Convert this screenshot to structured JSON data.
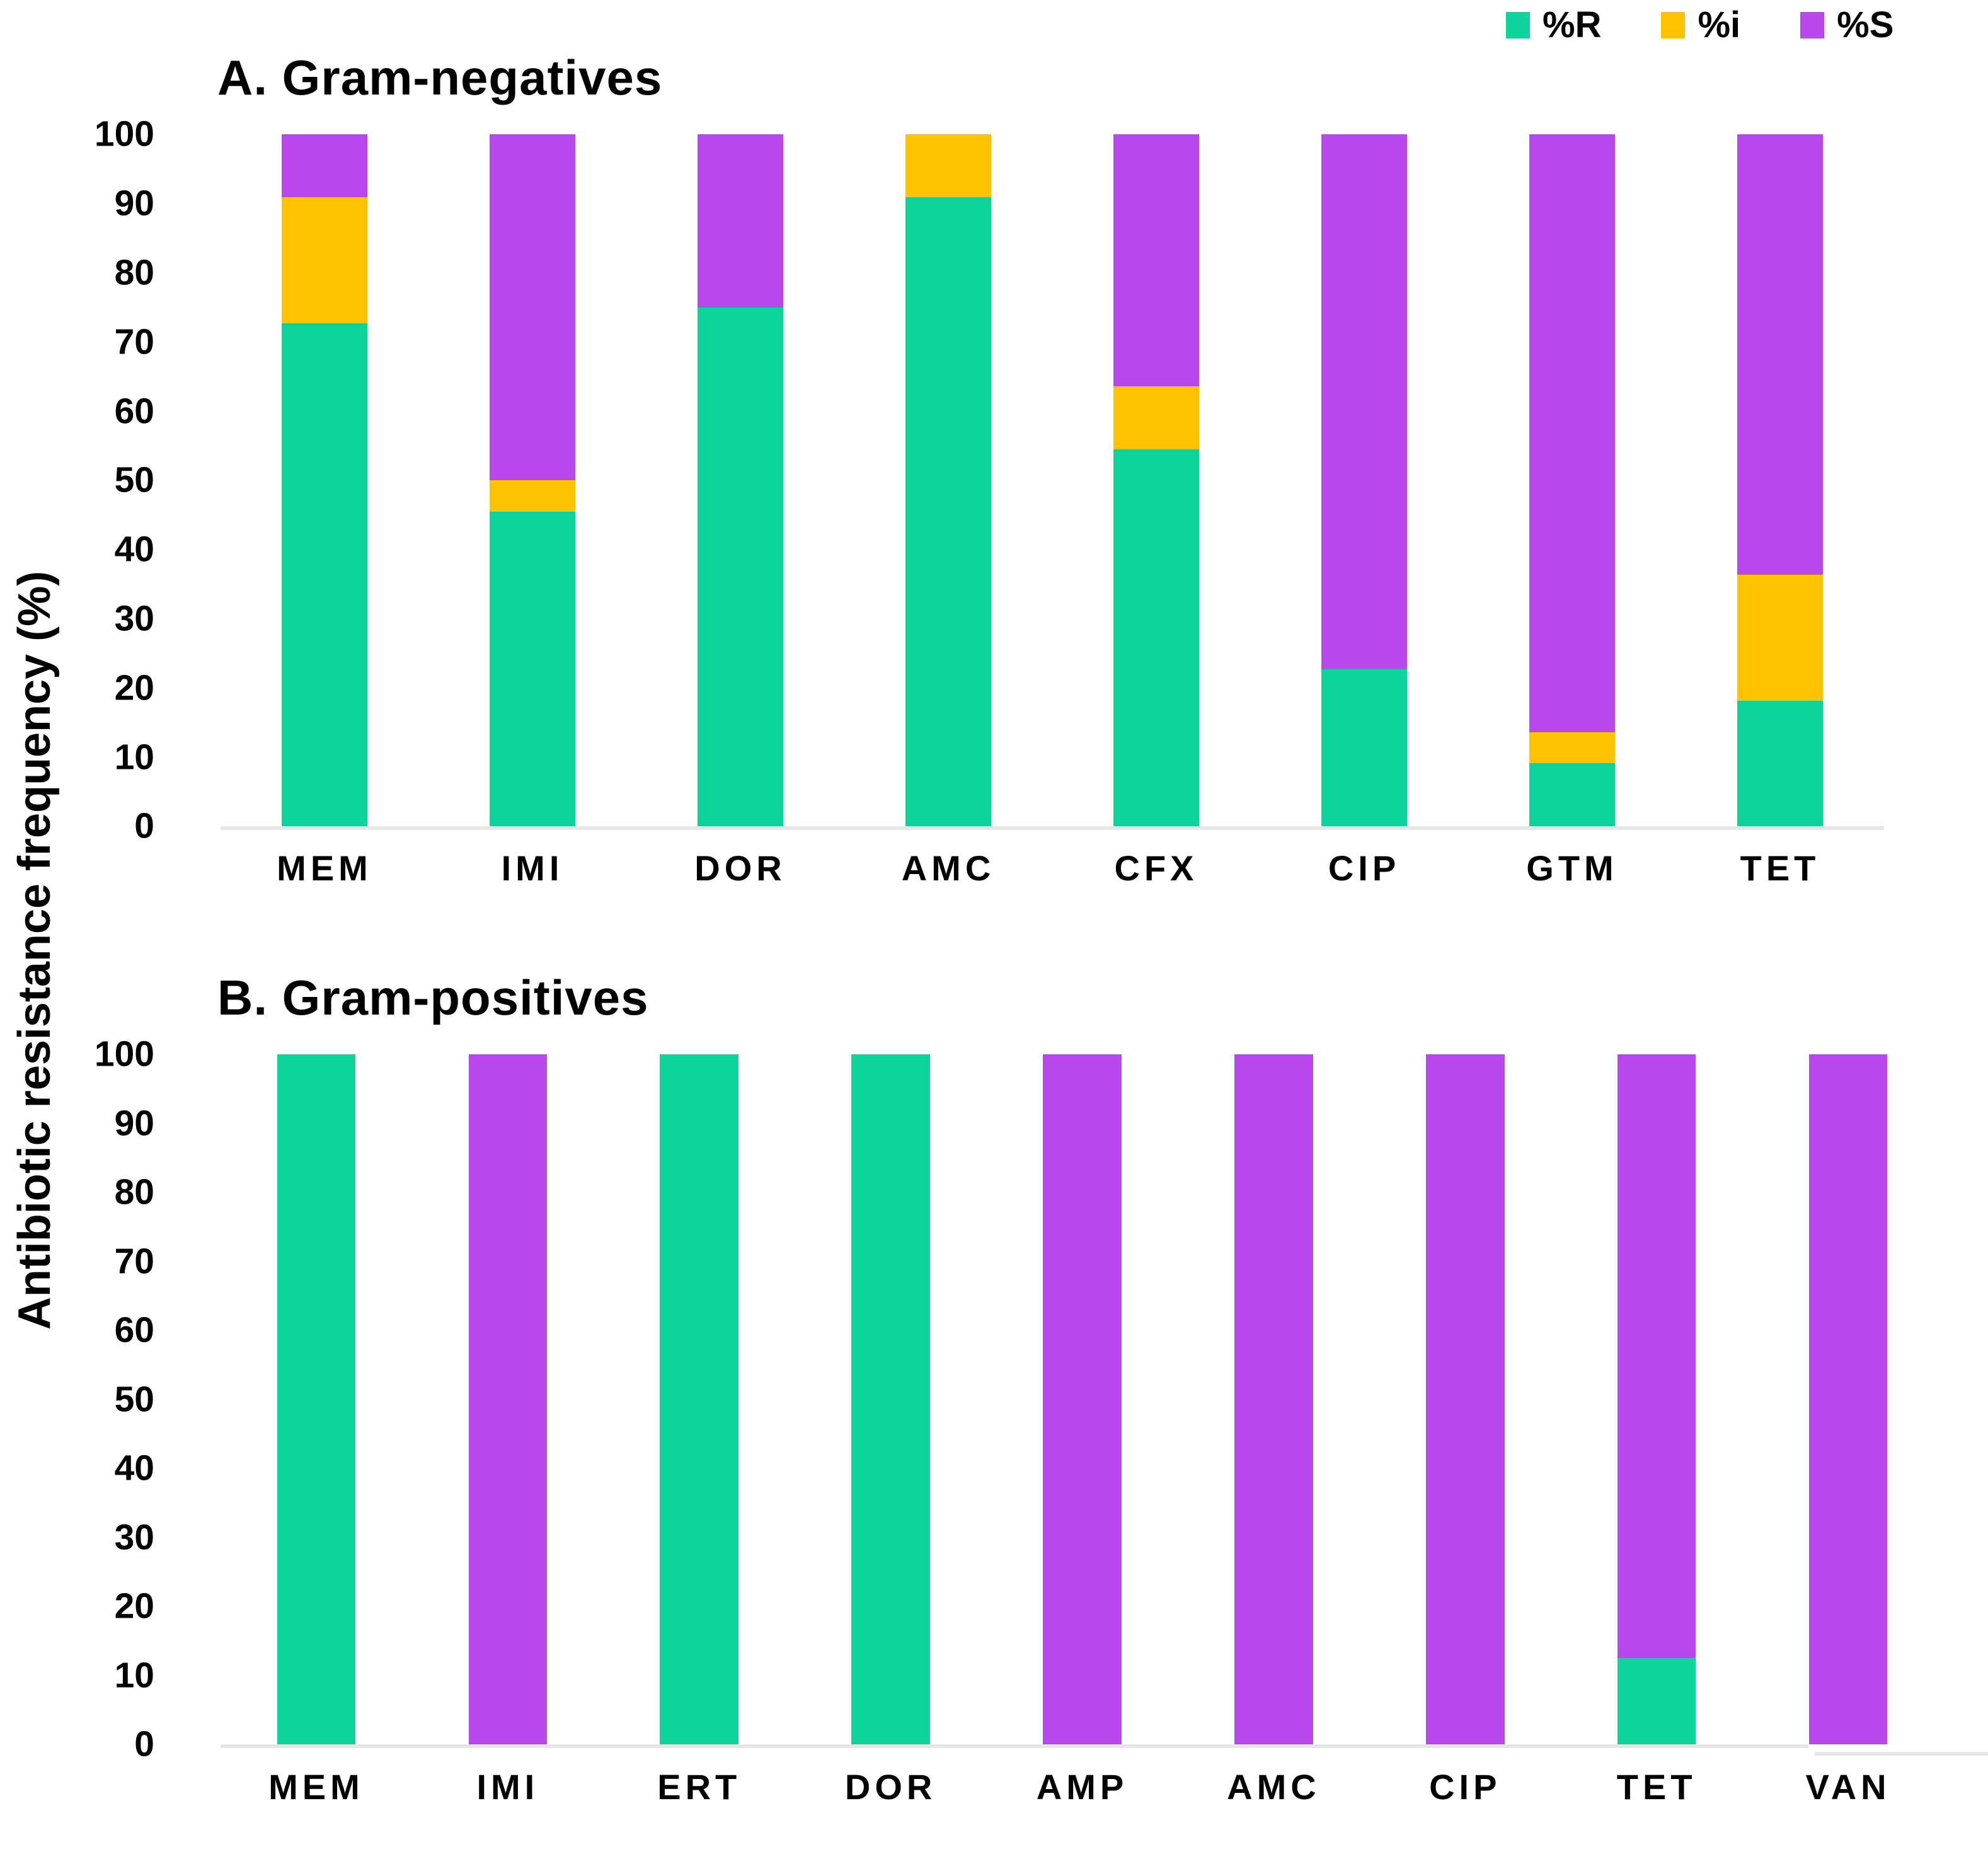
{
  "figure": {
    "y_axis_label": "Antibiotic resistance frequency (%)",
    "colors": {
      "resistant": "#0bd39a",
      "intermediate": "#ffc200",
      "susceptible": "#b847ee",
      "axis_line": "#e6e6e6",
      "text": "#000000",
      "background": "#ffffff"
    },
    "legend": [
      {
        "label": "%R",
        "color": "#0bd39a"
      },
      {
        "label": "%i",
        "color": "#ffc200"
      },
      {
        "label": "%S",
        "color": "#b847ee"
      }
    ]
  },
  "chart_data": [
    {
      "type": "bar",
      "stacked": true,
      "title": "A. Gram-negatives",
      "categories": [
        "MEM",
        "IMI",
        "DOR",
        "AMC",
        "CFX",
        "CIP",
        "GTM",
        "TET"
      ],
      "series": [
        {
          "name": "%R",
          "color": "#0bd39a",
          "values": [
            72.7,
            45.5,
            75.0,
            90.9,
            54.5,
            22.7,
            9.1,
            18.2
          ]
        },
        {
          "name": "%i",
          "color": "#ffc200",
          "values": [
            18.2,
            4.5,
            0,
            9.1,
            9.1,
            0,
            4.5,
            18.2
          ]
        },
        {
          "name": "%S",
          "color": "#b847ee",
          "values": [
            9.1,
            50.0,
            25.0,
            0,
            36.4,
            77.3,
            86.4,
            63.6
          ]
        }
      ],
      "xlabel": "",
      "ylabel": "Antibiotic resistance frequency (%)",
      "ylim": [
        0,
        100
      ],
      "yticks": [
        0,
        10,
        20,
        30,
        40,
        50,
        60,
        70,
        80,
        90,
        100
      ],
      "grid": false,
      "legend_position": "top-right"
    },
    {
      "type": "bar",
      "stacked": true,
      "title": "B. Gram-positives",
      "categories": [
        "MEM",
        "IMI",
        "ERT",
        "DOR",
        "AMP",
        "AMC",
        "CIP",
        "TET",
        "VAN"
      ],
      "series": [
        {
          "name": "%R",
          "color": "#0bd39a",
          "values": [
            100,
            0,
            100,
            100,
            0,
            0,
            0,
            12.5,
            0
          ]
        },
        {
          "name": "%i",
          "color": "#ffc200",
          "values": [
            0,
            0,
            0,
            0,
            0,
            0,
            0,
            0,
            0
          ]
        },
        {
          "name": "%S",
          "color": "#b847ee",
          "values": [
            0,
            100,
            0,
            0,
            100,
            100,
            100,
            87.5,
            100
          ]
        }
      ],
      "xlabel": "",
      "ylabel": "Antibiotic resistance frequency (%)",
      "ylim": [
        0,
        100
      ],
      "yticks": [
        0,
        10,
        20,
        30,
        40,
        50,
        60,
        70,
        80,
        90,
        100
      ],
      "grid": false,
      "legend_position": "none"
    }
  ]
}
